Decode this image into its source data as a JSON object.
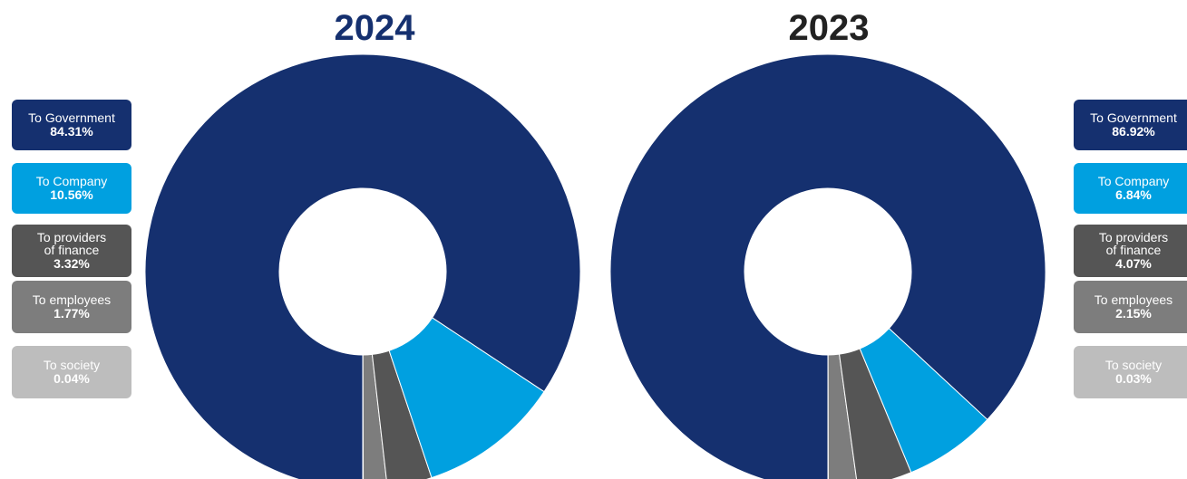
{
  "colors": {
    "government": "#15306f",
    "company": "#00a0e0",
    "finance": "#555555",
    "employees": "#7d7d7d",
    "society": "#bdbdbd",
    "title_2024": "#15306f",
    "title_2023": "#222222"
  },
  "chart_data": [
    {
      "type": "donut",
      "title": "2024",
      "legend_position": "left",
      "categories": [
        "To Government",
        "To Company",
        "To providers of finance",
        "To employees",
        "To society"
      ],
      "values": [
        84.31,
        10.56,
        3.32,
        1.77,
        0.04
      ],
      "labels": [
        "To Government",
        "To Company",
        "To providers\nof finance",
        "To employees",
        "To society"
      ],
      "value_labels": [
        "84.31%",
        "10.56%",
        "3.32%",
        "1.77%",
        "0.04%"
      ],
      "colors": [
        "#15306f",
        "#00a0e0",
        "#555555",
        "#7d7d7d",
        "#bdbdbd"
      ]
    },
    {
      "type": "donut",
      "title": "2023",
      "legend_position": "right",
      "categories": [
        "To Government",
        "To Company",
        "To providers of finance",
        "To employees",
        "To society"
      ],
      "values": [
        86.92,
        6.84,
        4.07,
        2.15,
        0.03
      ],
      "labels": [
        "To Government",
        "To Company",
        "To providers\nof finance",
        "To employees",
        "To society"
      ],
      "value_labels": [
        "86.92%",
        "6.84%",
        "4.07%",
        "2.15%",
        "0.03%"
      ],
      "colors": [
        "#15306f",
        "#00a0e0",
        "#555555",
        "#7d7d7d",
        "#bdbdbd"
      ]
    }
  ]
}
